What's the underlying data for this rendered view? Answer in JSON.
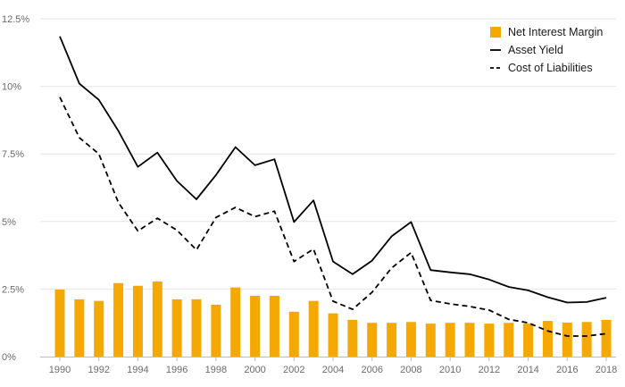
{
  "chart_data": {
    "type": "bar",
    "x": [
      1990,
      1991,
      1992,
      1993,
      1994,
      1995,
      1996,
      1997,
      1998,
      1999,
      2000,
      2001,
      2002,
      2003,
      2004,
      2005,
      2006,
      2007,
      2008,
      2009,
      2010,
      2011,
      2012,
      2013,
      2014,
      2015,
      2016,
      2017,
      2018
    ],
    "x_tick_labels": [
      "1990",
      "1992",
      "1994",
      "1996",
      "1998",
      "2000",
      "2002",
      "2004",
      "2006",
      "2008",
      "2010",
      "2012",
      "2014",
      "2016",
      "2018"
    ],
    "y_tick_labels": [
      "0%",
      "2.5%",
      "5%",
      "7.5%",
      "10%",
      "12.5%"
    ],
    "ylim": [
      0,
      12.5
    ],
    "grid": true,
    "legend_position": "top-right",
    "series": [
      {
        "name": "Net Interest Margin",
        "kind": "bar",
        "color": "#f5a800",
        "values": [
          2.48,
          2.12,
          2.06,
          2.72,
          2.62,
          2.78,
          2.12,
          2.12,
          1.92,
          2.56,
          2.25,
          2.25,
          1.66,
          2.06,
          1.6,
          1.36,
          1.25,
          1.25,
          1.28,
          1.22,
          1.25,
          1.25,
          1.22,
          1.25,
          1.22,
          1.32,
          1.26,
          1.28,
          1.36
        ]
      },
      {
        "name": "Asset Yield",
        "kind": "line",
        "color": "#000000",
        "dash": "solid",
        "values": [
          11.85,
          10.1,
          9.5,
          8.35,
          7.02,
          7.55,
          6.5,
          5.82,
          6.72,
          7.75,
          7.08,
          7.3,
          4.98,
          5.78,
          3.52,
          3.05,
          3.55,
          4.45,
          4.98,
          3.2,
          3.12,
          3.05,
          2.85,
          2.58,
          2.45,
          2.2,
          2.0,
          2.02,
          2.18
        ]
      },
      {
        "name": "Cost of Liabilities",
        "kind": "line",
        "color": "#000000",
        "dash": "dashed",
        "values": [
          9.6,
          8.1,
          7.5,
          5.7,
          4.65,
          5.12,
          4.68,
          3.95,
          5.15,
          5.52,
          5.18,
          5.38,
          3.52,
          3.98,
          2.05,
          1.75,
          2.38,
          3.28,
          3.85,
          2.08,
          1.95,
          1.86,
          1.72,
          1.38,
          1.25,
          0.95,
          0.76,
          0.76,
          0.85
        ]
      }
    ]
  }
}
